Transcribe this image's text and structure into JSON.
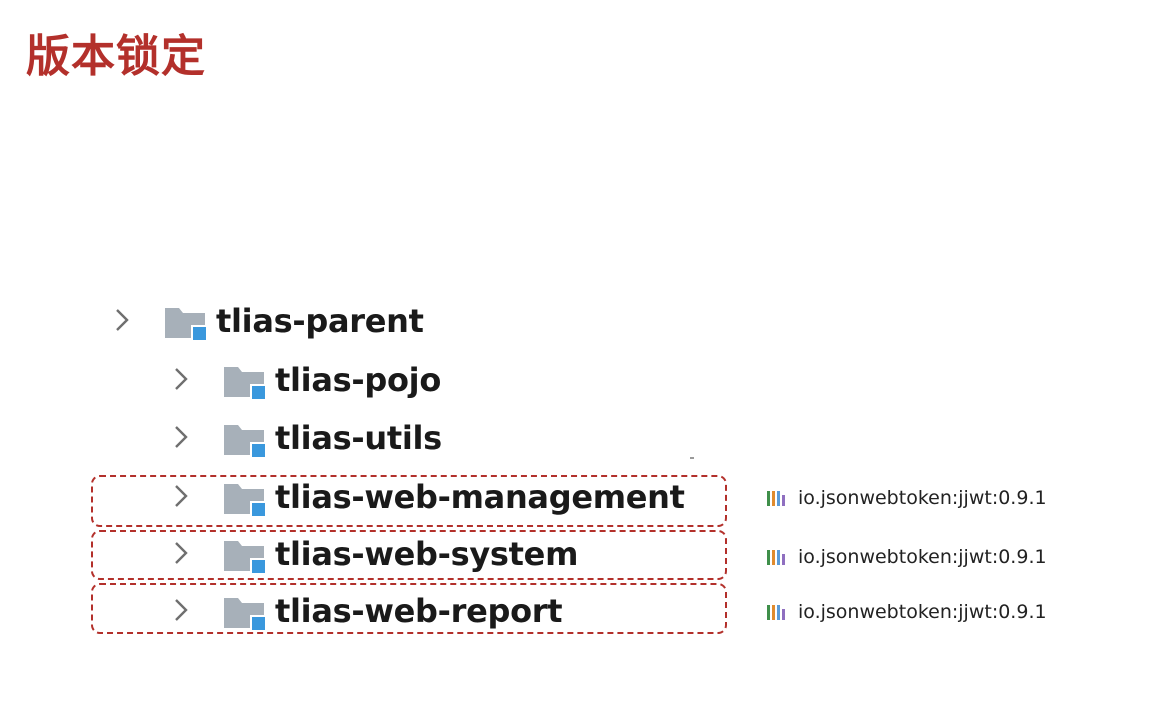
{
  "page": {
    "title": "版本锁定",
    "title_color": "#b3302b"
  },
  "tree": {
    "nodes": [
      {
        "label": "tlias-parent",
        "icon": "module-folder-icon",
        "expanded": false,
        "level": 0
      },
      {
        "label": "tlias-pojo",
        "icon": "module-folder-icon",
        "expanded": false,
        "level": 1
      },
      {
        "label": "tlias-utils",
        "icon": "module-folder-icon",
        "expanded": false,
        "level": 1
      },
      {
        "label": "tlias-web-management",
        "icon": "module-folder-icon",
        "expanded": false,
        "level": 1,
        "highlighted": true
      },
      {
        "label": "tlias-web-system",
        "icon": "module-folder-icon",
        "expanded": false,
        "level": 1,
        "highlighted": true
      },
      {
        "label": "tlias-web-report",
        "icon": "module-folder-icon",
        "expanded": false,
        "level": 1,
        "highlighted": true
      }
    ]
  },
  "dependencies": [
    {
      "label": "io.jsonwebtoken:jjwt:0.9.1",
      "icon": "library-icon"
    },
    {
      "label": "io.jsonwebtoken:jjwt:0.9.1",
      "icon": "library-icon"
    },
    {
      "label": "io.jsonwebtoken:jjwt:0.9.1",
      "icon": "library-icon"
    }
  ],
  "colors": {
    "highlight_border": "#b3302b",
    "folder_gray": "#a7b0b9",
    "module_badge": "#3a98dd",
    "chevron": "#6f6f6f",
    "library_bars": [
      "#3f8f4a",
      "#e08b2e",
      "#5a9bd8",
      "#8f6fc0"
    ]
  }
}
